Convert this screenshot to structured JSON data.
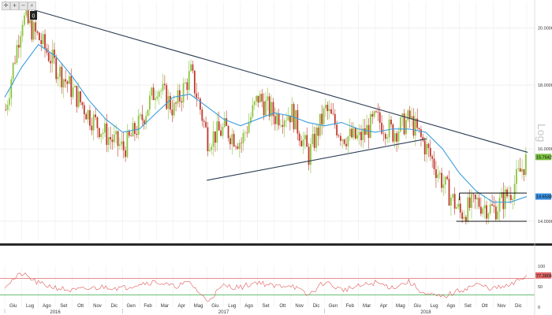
{
  "toolbar": {
    "buttons": [
      {
        "name": "crosshair-icon",
        "glyph": "✛"
      },
      {
        "name": "zoom-in-icon",
        "glyph": "+"
      },
      {
        "name": "zoom-out-icon",
        "glyph": "−"
      },
      {
        "name": "magnifier-icon",
        "glyph": "⌕"
      }
    ],
    "marker_label": "0"
  },
  "colors": {
    "candle_up": "#8cc63f",
    "candle_down": "#c0392b",
    "ma_line": "#3b9ddd",
    "trendline": "#2d3e55",
    "box_line": "#111111",
    "rsi_line": "#e05a5a",
    "rsi_upper": "#e06666",
    "rsi_lower": "#33aa44",
    "last_price_badge": "#7ac142",
    "ma_badge": "#3b8fe0"
  },
  "chart_data": [
    {
      "type": "candlestick",
      "scale": "log",
      "watermark": "Log",
      "ylim": [
        13.5,
        21
      ],
      "yticks": [
        "14.0000",
        "16.0000",
        "18.0000",
        "20.0000"
      ],
      "last_price_label": "15.7642",
      "ma_label": "14.6538",
      "x_labels": [
        "Giu",
        "Lug",
        "Ago",
        "Set",
        "Ott",
        "Nov",
        "Dic",
        "Gen",
        "Feb",
        "Mar",
        "Apr",
        "Mag",
        "Giu",
        "Lug",
        "Ago",
        "Set",
        "Ott",
        "Nov",
        "Dic",
        "Gen",
        "Feb",
        "Mar",
        "Apr",
        "Mag",
        "Giu",
        "Lug",
        "Ago",
        "Set",
        "Ott",
        "Nov",
        "Dic"
      ],
      "year_labels": [
        "2016",
        "2017",
        "2018"
      ],
      "monthly_close": [
        {
          "month": "Giu 2016",
          "value": 17.2
        },
        {
          "month": "Lug 2016",
          "value": 20.4
        },
        {
          "month": "Ago 2016",
          "value": 19.6
        },
        {
          "month": "Set 2016",
          "value": 18.6
        },
        {
          "month": "Ott 2016",
          "value": 17.8
        },
        {
          "month": "Nov 2016",
          "value": 17.0
        },
        {
          "month": "Dic 2016",
          "value": 16.4
        },
        {
          "month": "Gen 2017",
          "value": 16.0
        },
        {
          "month": "Feb 2017",
          "value": 16.8
        },
        {
          "month": "Mar 2017",
          "value": 18.0
        },
        {
          "month": "Apr 2017",
          "value": 17.2
        },
        {
          "month": "Mag 2017",
          "value": 18.4
        },
        {
          "month": "Giu 2017",
          "value": 16.3
        },
        {
          "month": "Lug 2017",
          "value": 16.6
        },
        {
          "month": "Ago 2017",
          "value": 16.2
        },
        {
          "month": "Set 2017",
          "value": 17.6
        },
        {
          "month": "Ott 2017",
          "value": 17.0
        },
        {
          "month": "Nov 2017",
          "value": 17.1
        },
        {
          "month": "Dic 2017",
          "value": 15.8
        },
        {
          "month": "Gen 2018",
          "value": 17.2
        },
        {
          "month": "Feb 2018",
          "value": 16.4
        },
        {
          "month": "Mar 2018",
          "value": 16.3
        },
        {
          "month": "Apr 2018",
          "value": 16.9
        },
        {
          "month": "Mag 2018",
          "value": 16.5
        },
        {
          "month": "Giu 2018",
          "value": 16.9
        },
        {
          "month": "Lug 2018",
          "value": 16.0
        },
        {
          "month": "Ago 2018",
          "value": 15.0
        },
        {
          "month": "Set 2018",
          "value": 14.2
        },
        {
          "month": "Ott 2018",
          "value": 14.5
        },
        {
          "month": "Nov 2018",
          "value": 14.3
        },
        {
          "month": "Dic 2018",
          "value": 14.8
        },
        {
          "month": "Dic 2018 end",
          "value": 15.7642
        }
      ],
      "moving_average_monthly": [
        17.6,
        18.6,
        19.4,
        19.0,
        18.3,
        17.5,
        16.9,
        16.5,
        16.6,
        17.1,
        17.6,
        17.7,
        17.3,
        16.9,
        16.7,
        16.9,
        17.1,
        17.0,
        16.8,
        16.7,
        16.8,
        16.6,
        16.5,
        16.6,
        16.6,
        16.5,
        16.0,
        15.3,
        14.8,
        14.5,
        14.5,
        14.6538
      ],
      "trendlines": [
        {
          "name": "descending-resistance",
          "from": {
            "month": "Giu 2016",
            "value": 21.0
          },
          "to": {
            "month": "Dic 2018 end",
            "value": 15.9
          }
        },
        {
          "name": "ascending-support",
          "from": {
            "month": "Giu 2017",
            "value": 15.1
          },
          "to": {
            "month": "Lug 2018",
            "value": 16.3
          }
        }
      ],
      "range_box": {
        "from_month": "Set 2018",
        "to_month": "Dic 2018 end",
        "top": 14.75,
        "bottom": 14.0
      }
    },
    {
      "type": "line",
      "name": "RSI",
      "ylim": [
        0,
        100
      ],
      "yticks": [
        "100",
        "50",
        "0"
      ],
      "upper_level": 70,
      "lower_level": 30,
      "last_value_label": "77.3806",
      "monthly_values": [
        52,
        82,
        58,
        48,
        40,
        45,
        50,
        46,
        58,
        62,
        50,
        60,
        15,
        52,
        48,
        62,
        50,
        55,
        28,
        62,
        42,
        50,
        60,
        48,
        62,
        30,
        25,
        40,
        55,
        45,
        52,
        77.3806
      ]
    }
  ]
}
